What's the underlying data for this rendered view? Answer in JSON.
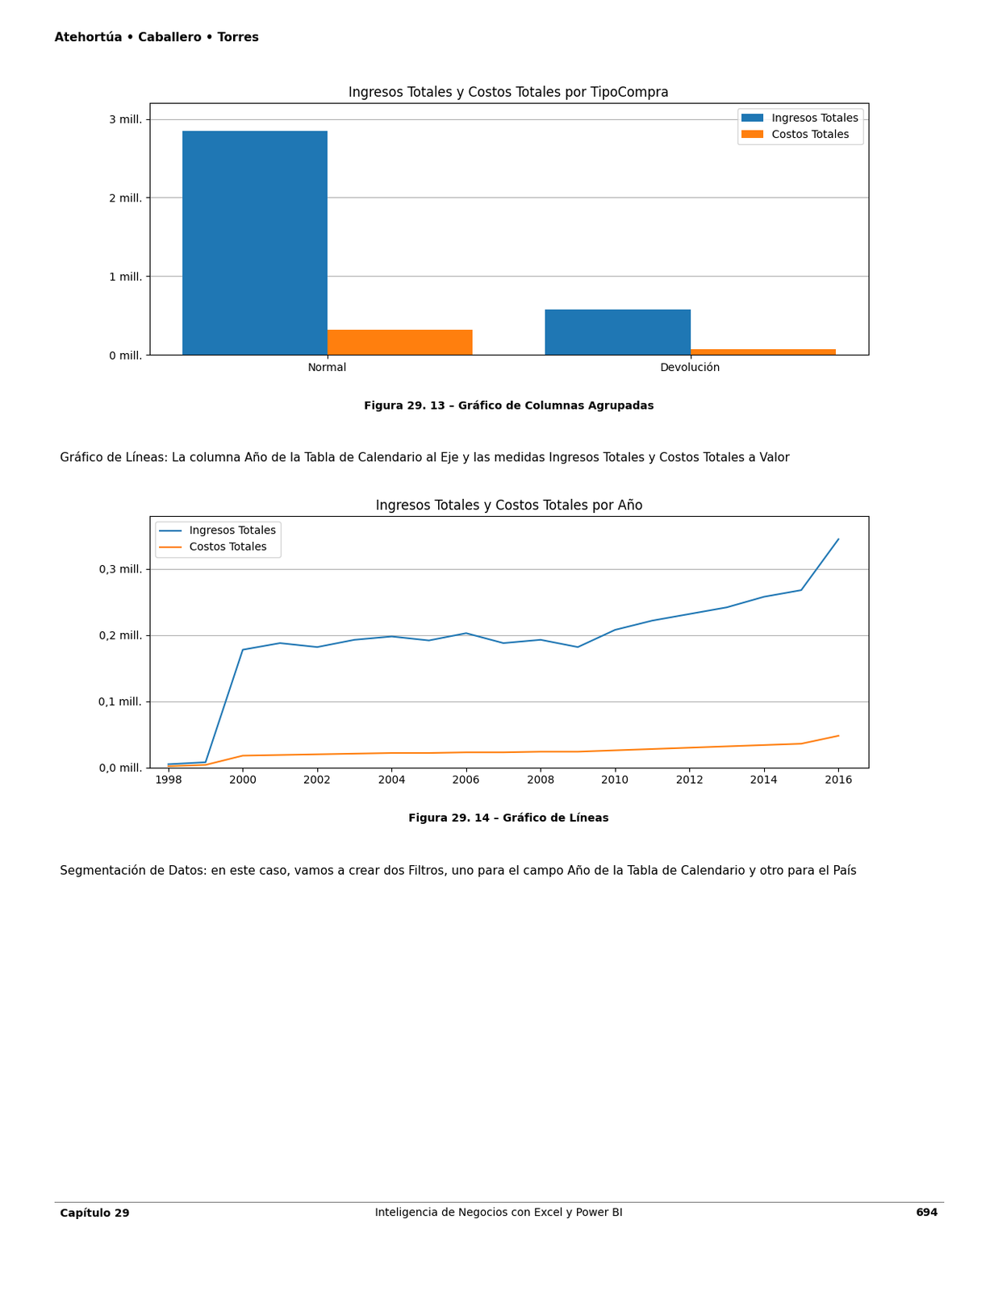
{
  "header": "Atehortúa • Caballero • Torres",
  "bullets": [
    "Gráfico de Líneas: La columna Año de la Tabla de Calendario al Eje y las medidas Ingresos Totales y Costos Totales a Valor",
    "Segmentación de Datos: en este caso, vamos a crear dos Filtros, uno para el campo Año de la Tabla de Calendario y otro para el País"
  ],
  "footer": [
    "Capítulo 29",
    "Inteligencia de Negocios con Excel y Power BI",
    "694"
  ],
  "chart_data": [
    {
      "type": "bar",
      "title": "Ingresos Totales y Costos Totales por TipoCompra",
      "categories": [
        "Normal",
        "Devolución"
      ],
      "series": [
        {
          "name": "Ingresos Totales",
          "values": [
            2.85,
            0.58
          ]
        },
        {
          "name": "Costos Totales",
          "values": [
            0.32,
            0.07
          ]
        }
      ],
      "ylim": [
        0,
        3.2
      ],
      "yticks": [
        {
          "value": 0,
          "label": "0 mill."
        },
        {
          "value": 1,
          "label": "1 mill."
        },
        {
          "value": 2,
          "label": "2 mill."
        },
        {
          "value": 3,
          "label": "3 mill."
        }
      ],
      "grid": true,
      "legend": "upper right",
      "annotations": [
        "Figura 29. 13 – Gráfico de Columnas Agrupadas"
      ]
    },
    {
      "type": "line",
      "title": "Ingresos Totales y Costos Totales por Año",
      "x": [
        1998,
        1999,
        2000,
        2001,
        2002,
        2003,
        2004,
        2005,
        2006,
        2007,
        2008,
        2009,
        2010,
        2011,
        2012,
        2013,
        2014,
        2015,
        2016
      ],
      "series": [
        {
          "name": "Ingresos Totales",
          "values": [
            0.005,
            0.008,
            0.178,
            0.188,
            0.182,
            0.193,
            0.198,
            0.192,
            0.203,
            0.188,
            0.193,
            0.182,
            0.208,
            0.222,
            0.232,
            0.242,
            0.258,
            0.268,
            0.345
          ]
        },
        {
          "name": "Costos Totales",
          "values": [
            0.002,
            0.004,
            0.018,
            0.019,
            0.02,
            0.021,
            0.022,
            0.022,
            0.023,
            0.023,
            0.024,
            0.024,
            0.026,
            0.028,
            0.03,
            0.032,
            0.034,
            0.036,
            0.048
          ]
        }
      ],
      "xlim": [
        1997.5,
        2016.8
      ],
      "xticks": [
        1998,
        2000,
        2002,
        2004,
        2006,
        2008,
        2010,
        2012,
        2014,
        2016
      ],
      "ylim": [
        0.0,
        0.38
      ],
      "yticks": [
        {
          "value": 0.0,
          "label": "0,0 mill."
        },
        {
          "value": 0.1,
          "label": "0,1 mill."
        },
        {
          "value": 0.2,
          "label": "0,2 mill."
        },
        {
          "value": 0.3,
          "label": "0,3 mill."
        }
      ],
      "grid": true,
      "legend": "upper left",
      "annotations": [
        "Figura 29. 14 – Gráfico de Líneas"
      ]
    }
  ]
}
